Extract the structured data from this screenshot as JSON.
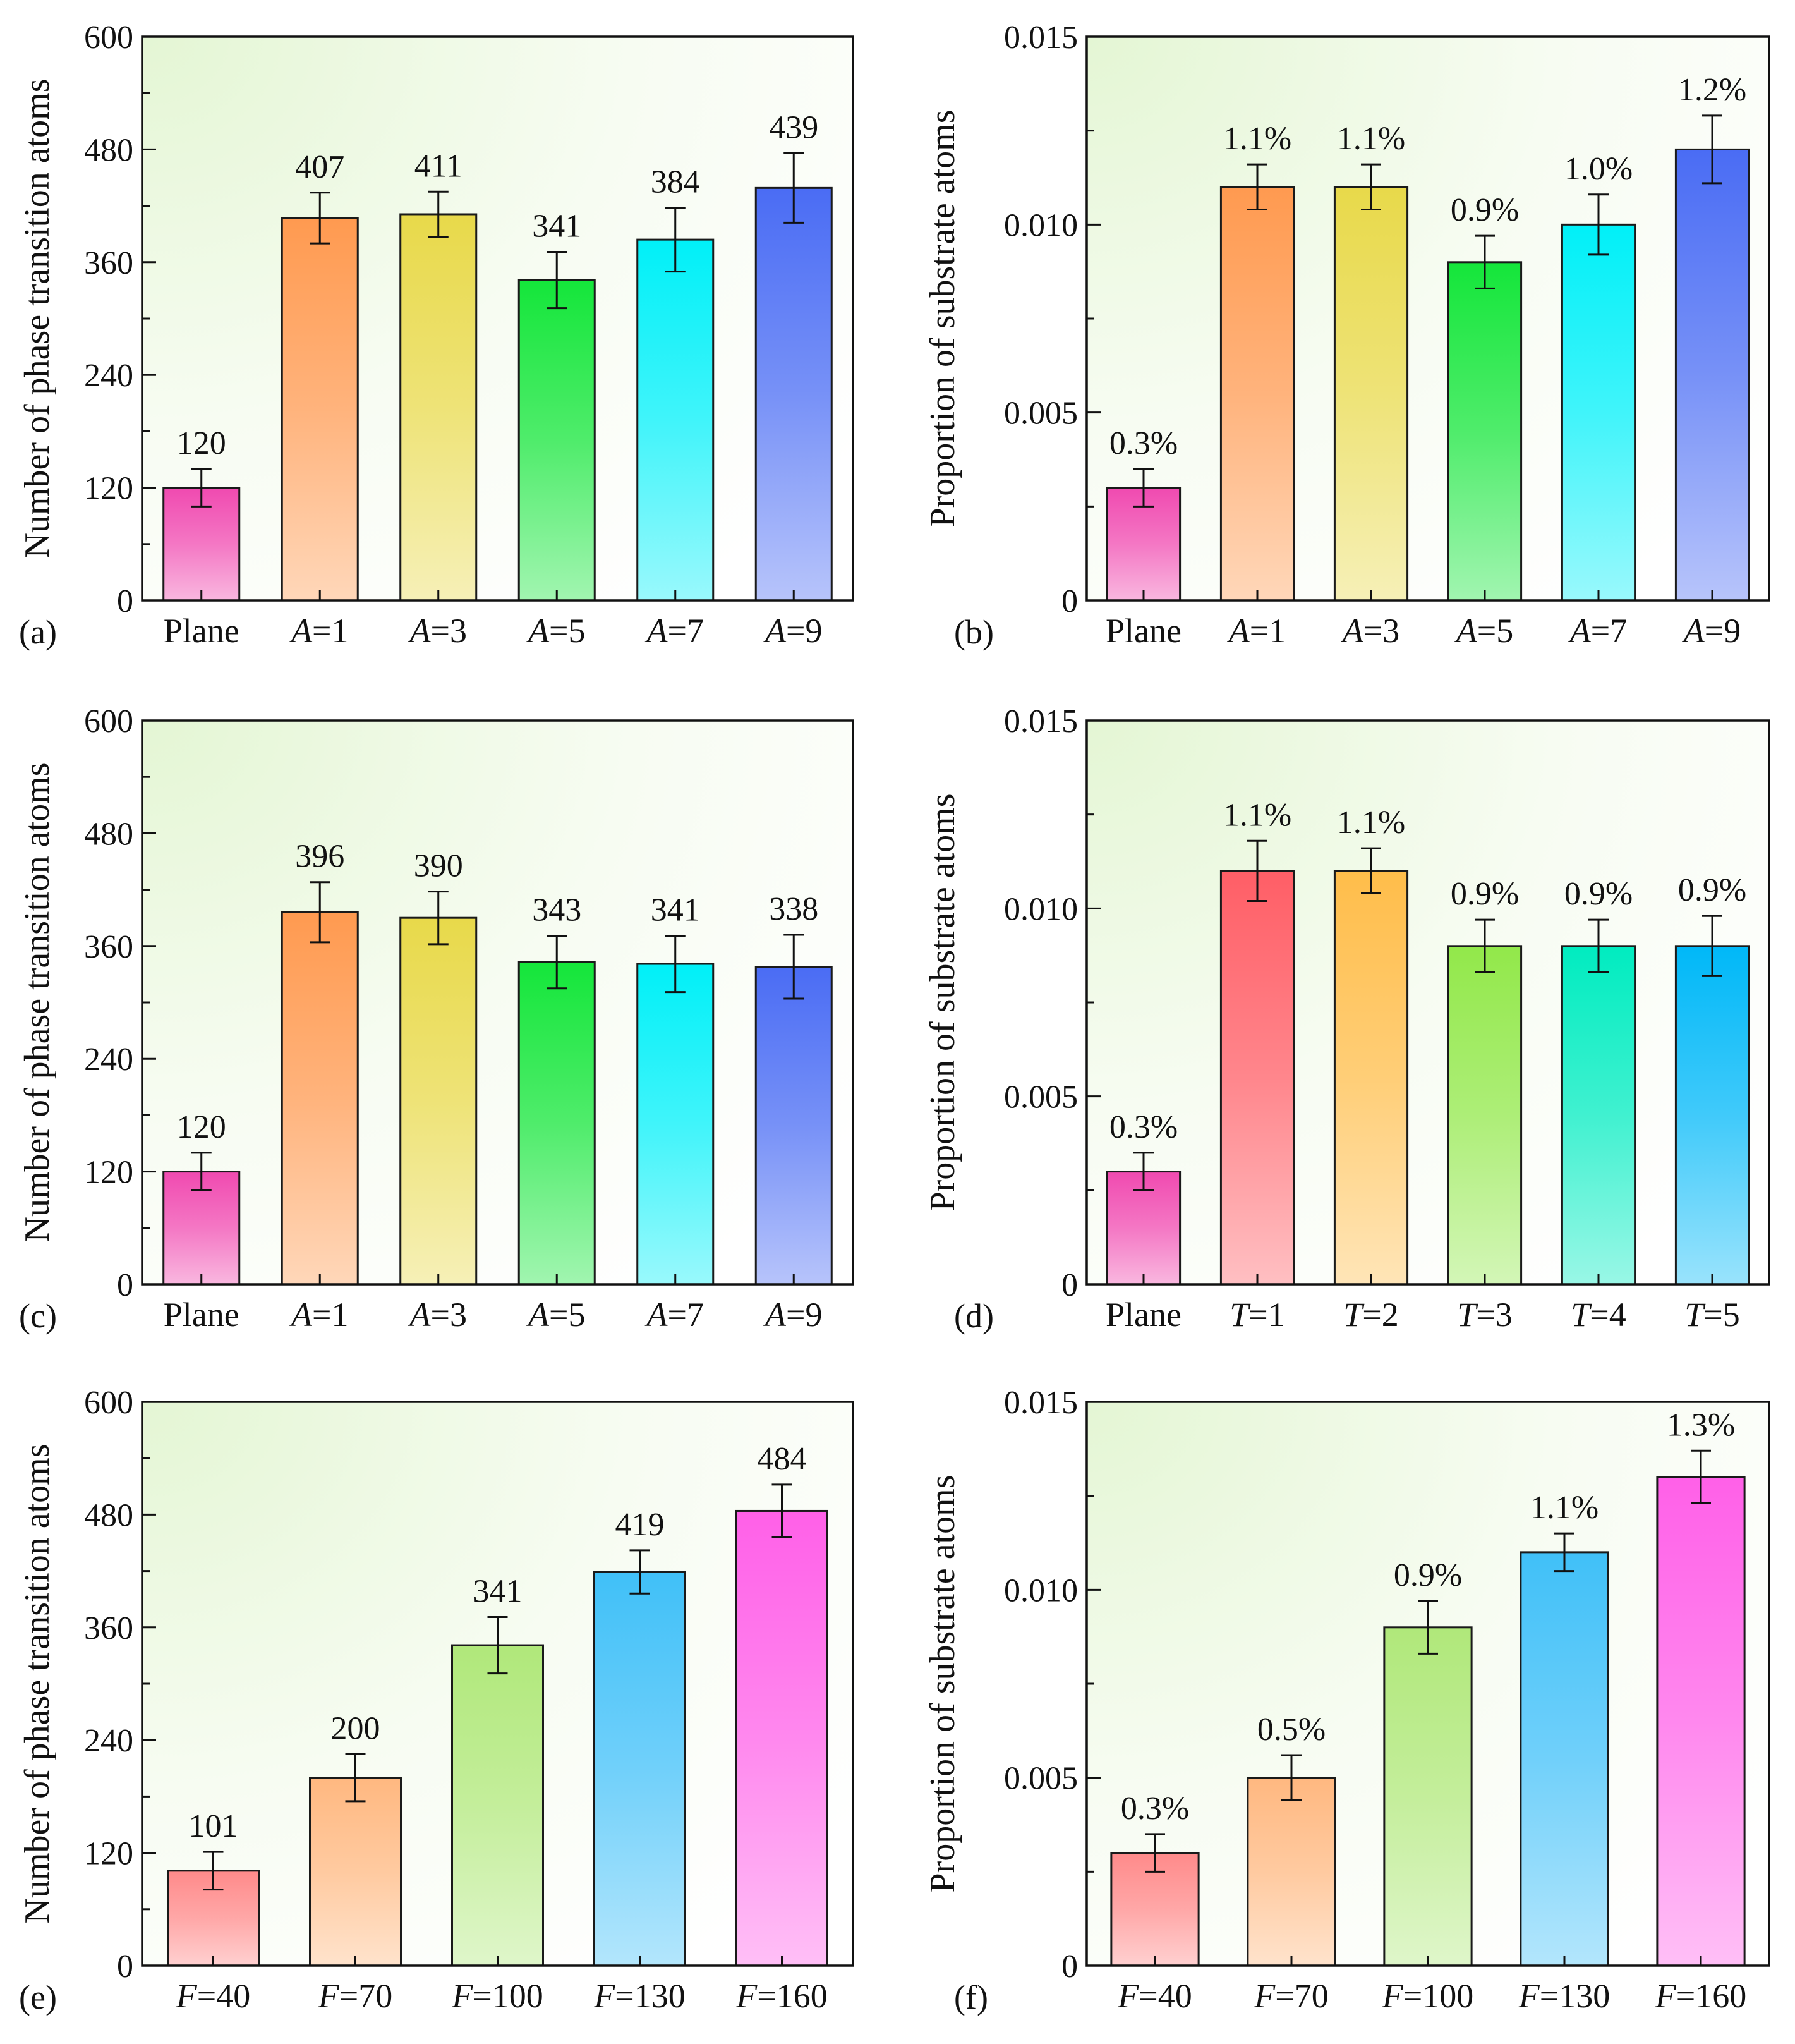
{
  "figure": {
    "panels": [
      "(a)",
      "(b)",
      "(c)",
      "(d)",
      "(e)",
      "(f)"
    ]
  },
  "chart_data": [
    {
      "type": "bar",
      "panel": "(a)",
      "ylabel": "Number of phase transition atoms",
      "ylim": [
        0,
        600
      ],
      "yticks": [
        "0",
        "120",
        "240",
        "360",
        "480",
        "600"
      ],
      "categories": [
        {
          "italic": "",
          "rest": "Plane"
        },
        {
          "italic": "A",
          "rest": "=1"
        },
        {
          "italic": "A",
          "rest": "=3"
        },
        {
          "italic": "A",
          "rest": "=5"
        },
        {
          "italic": "A",
          "rest": "=7"
        },
        {
          "italic": "A",
          "rest": "=9"
        }
      ],
      "values": [
        120,
        407,
        411,
        341,
        384,
        439
      ],
      "errors": [
        20,
        27,
        24,
        30,
        34,
        37
      ],
      "labels": [
        "120",
        "407",
        "411",
        "341",
        "384",
        "439"
      ],
      "colors": [
        "#f04ab0",
        "#ff9a50",
        "#e8d94a",
        "#14e63a",
        "#00f0f8",
        "#4a6cf4"
      ]
    },
    {
      "type": "bar",
      "panel": "(b)",
      "ylabel": "Proportion of substrate atoms",
      "ylim": [
        0,
        0.015
      ],
      "yticks": [
        "0",
        "0.005",
        "0.010",
        "0.015"
      ],
      "categories": [
        {
          "italic": "",
          "rest": "Plane"
        },
        {
          "italic": "A",
          "rest": "=1"
        },
        {
          "italic": "A",
          "rest": "=3"
        },
        {
          "italic": "A",
          "rest": "=5"
        },
        {
          "italic": "A",
          "rest": "=7"
        },
        {
          "italic": "A",
          "rest": "=9"
        }
      ],
      "values": [
        0.003,
        0.011,
        0.011,
        0.009,
        0.01,
        0.012
      ],
      "errors": [
        0.0005,
        0.0006,
        0.0006,
        0.0007,
        0.0008,
        0.0009
      ],
      "labels": [
        "0.3%",
        "1.1%",
        "1.1%",
        "0.9%",
        "1.0%",
        "1.2%"
      ],
      "colors": [
        "#f04ab0",
        "#ff9a50",
        "#e8d94a",
        "#14e63a",
        "#00f0f8",
        "#4a6cf4"
      ]
    },
    {
      "type": "bar",
      "panel": "(c)",
      "ylabel": "Number of phase transition atoms",
      "ylim": [
        0,
        600
      ],
      "yticks": [
        "0",
        "120",
        "240",
        "360",
        "480",
        "600"
      ],
      "categories": [
        {
          "italic": "",
          "rest": "Plane"
        },
        {
          "italic": "A",
          "rest": "=1"
        },
        {
          "italic": "A",
          "rest": "=3"
        },
        {
          "italic": "A",
          "rest": "=5"
        },
        {
          "italic": "A",
          "rest": "=7"
        },
        {
          "italic": "A",
          "rest": "=9"
        }
      ],
      "values": [
        120,
        396,
        390,
        343,
        341,
        338
      ],
      "errors": [
        20,
        32,
        28,
        28,
        30,
        34
      ],
      "labels": [
        "120",
        "396",
        "390",
        "343",
        "341",
        "338"
      ],
      "colors": [
        "#f04ab0",
        "#ff9a50",
        "#e8d94a",
        "#14e63a",
        "#00f0f8",
        "#4a6cf4"
      ]
    },
    {
      "type": "bar",
      "panel": "(d)",
      "ylabel": "Proportion of substrate atoms",
      "ylim": [
        0,
        0.015
      ],
      "yticks": [
        "0",
        "0.005",
        "0.010",
        "0.015"
      ],
      "categories": [
        {
          "italic": "",
          "rest": "Plane"
        },
        {
          "italic": "T",
          "rest": "=1"
        },
        {
          "italic": "T",
          "rest": "=2"
        },
        {
          "italic": "T",
          "rest": "=3"
        },
        {
          "italic": "T",
          "rest": "=4"
        },
        {
          "italic": "T",
          "rest": "=5"
        }
      ],
      "values": [
        0.003,
        0.011,
        0.011,
        0.009,
        0.009,
        0.009
      ],
      "errors": [
        0.0005,
        0.0008,
        0.0006,
        0.0007,
        0.0007,
        0.0008
      ],
      "labels": [
        "0.3%",
        "1.1%",
        "1.1%",
        "0.9%",
        "0.9%",
        "0.9%"
      ],
      "colors": [
        "#f04ab0",
        "#ff5e66",
        "#ffbd4a",
        "#92e84a",
        "#00ecc0",
        "#00b8f8"
      ]
    },
    {
      "type": "bar",
      "panel": "(e)",
      "ylabel": "Number of phase transition atoms",
      "ylim": [
        0,
        600
      ],
      "yticks": [
        "0",
        "120",
        "240",
        "360",
        "480",
        "600"
      ],
      "categories": [
        {
          "italic": "F",
          "rest": "=40"
        },
        {
          "italic": "F",
          "rest": "=70"
        },
        {
          "italic": "F",
          "rest": "=100"
        },
        {
          "italic": "F",
          "rest": "=130"
        },
        {
          "italic": "F",
          "rest": "=160"
        }
      ],
      "values": [
        101,
        200,
        341,
        419,
        484
      ],
      "errors": [
        20,
        25,
        30,
        23,
        28
      ],
      "labels": [
        "101",
        "200",
        "341",
        "419",
        "484"
      ],
      "colors": [
        "#ff8a8a",
        "#ffb880",
        "#b0e87a",
        "#40c0f8",
        "#ff60e8"
      ]
    },
    {
      "type": "bar",
      "panel": "(f)",
      "ylabel": "Proportion of substrate atoms",
      "ylim": [
        0,
        0.015
      ],
      "yticks": [
        "0",
        "0.005",
        "0.010",
        "0.015"
      ],
      "categories": [
        {
          "italic": "F",
          "rest": "=40"
        },
        {
          "italic": "F",
          "rest": "=70"
        },
        {
          "italic": "F",
          "rest": "=100"
        },
        {
          "italic": "F",
          "rest": "=130"
        },
        {
          "italic": "F",
          "rest": "=160"
        }
      ],
      "values": [
        0.003,
        0.005,
        0.009,
        0.011,
        0.013
      ],
      "errors": [
        0.0005,
        0.0006,
        0.0007,
        0.0005,
        0.0007
      ],
      "labels": [
        "0.3%",
        "0.5%",
        "0.9%",
        "1.1%",
        "1.3%"
      ],
      "colors": [
        "#ff8a8a",
        "#ffb880",
        "#b0e87a",
        "#40c0f8",
        "#ff60e8"
      ]
    }
  ]
}
